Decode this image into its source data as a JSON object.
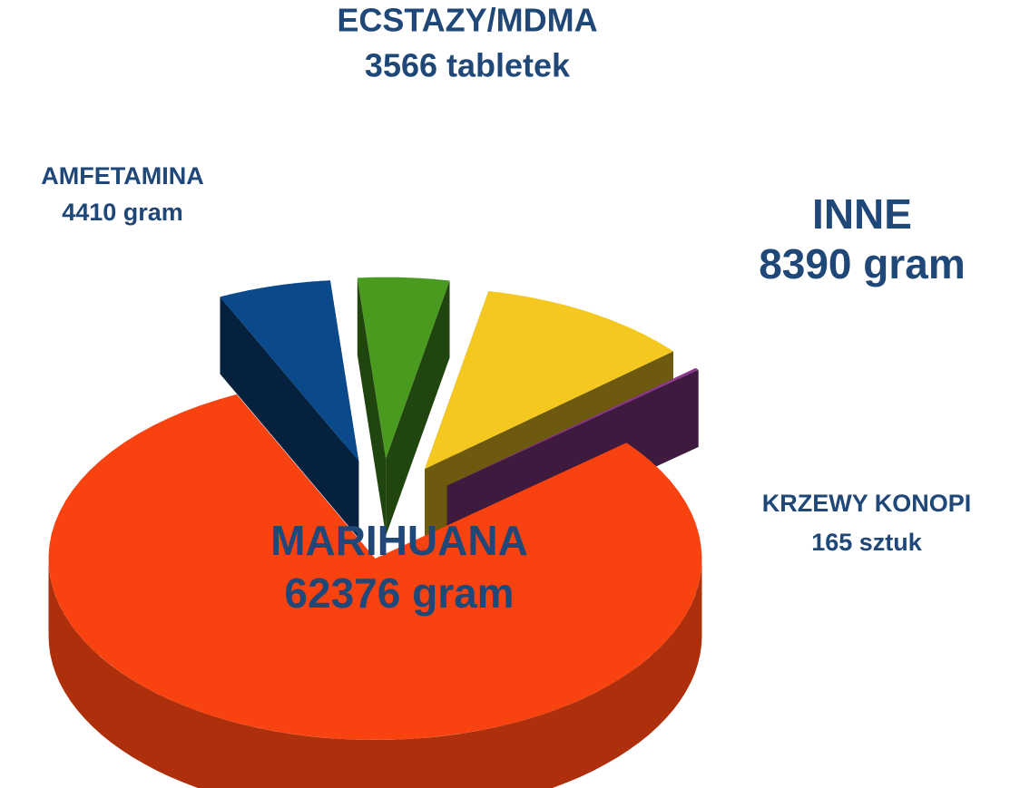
{
  "chart_data": {
    "type": "pie",
    "categories": [
      "ECSTAZY/MDMA",
      "INNE",
      "KRZEWY KONOPI",
      "MARIHUANA",
      "AMFETAMINA"
    ],
    "values": [
      3566,
      8390,
      165,
      62376,
      4410
    ],
    "value_labels": [
      "3566 tabletek",
      "8390 gram",
      "165 sztuk",
      "62376 gram",
      "4410 gram"
    ],
    "colors": [
      "#4a9a20",
      "#f5c820",
      "#8a3a8a",
      "#f84310",
      "#0a4a8a"
    ]
  }
}
